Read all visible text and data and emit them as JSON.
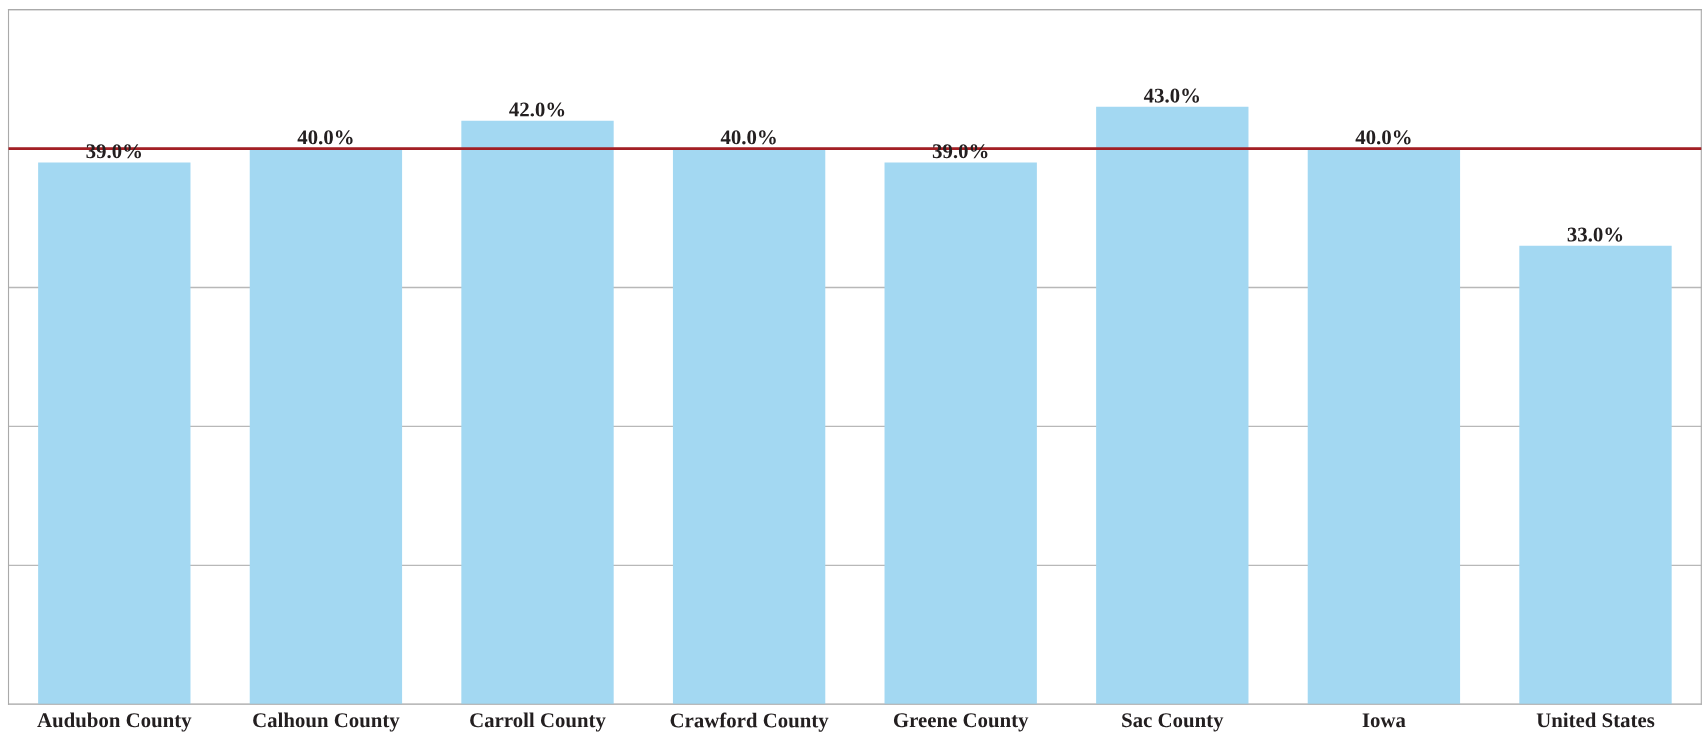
{
  "chart_data": {
    "type": "bar",
    "categories": [
      "Audubon County",
      "Calhoun County",
      "Carroll County",
      "Crawford County",
      "Greene County",
      "Sac County",
      "Iowa",
      "United States"
    ],
    "values": [
      39.0,
      40.0,
      42.0,
      40.0,
      39.0,
      43.0,
      40.0,
      33.0
    ],
    "value_labels": [
      "39.0%",
      "40.0%",
      "42.0%",
      "40.0%",
      "39.0%",
      "43.0%",
      "40.0%",
      "33.0%"
    ],
    "color": "#a3d8f2",
    "ylim": [
      0,
      50
    ],
    "yticks": [
      {
        "value": 0,
        "label": null
      },
      {
        "value": 10,
        "label": null
      },
      {
        "value": 20,
        "label": null
      },
      {
        "value": 30,
        "label": null
      },
      {
        "value": 40,
        "label": null
      },
      {
        "value": 50,
        "label": null
      }
    ],
    "grid": "y",
    "tick_labels": "x",
    "legend": false,
    "ref_lines": [
      {
        "axis": "y",
        "value": 40,
        "color": "#a31f24"
      }
    ]
  }
}
